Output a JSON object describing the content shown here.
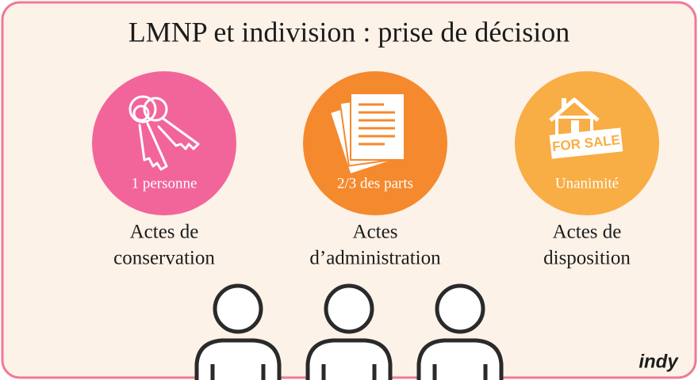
{
  "header": {
    "title": "LMNP et indivision : prise de décision"
  },
  "items": [
    {
      "circle_label": "1 personne",
      "label_lines": [
        "Actes de",
        "conservation"
      ]
    },
    {
      "circle_label": "2/3 des parts",
      "label_lines": [
        "Actes",
        "d’administration"
      ]
    },
    {
      "circle_label": "Unanimité",
      "label_lines": [
        "Actes de",
        "disposition"
      ]
    }
  ],
  "sign_text": "FOR SALE",
  "logo": "indy"
}
